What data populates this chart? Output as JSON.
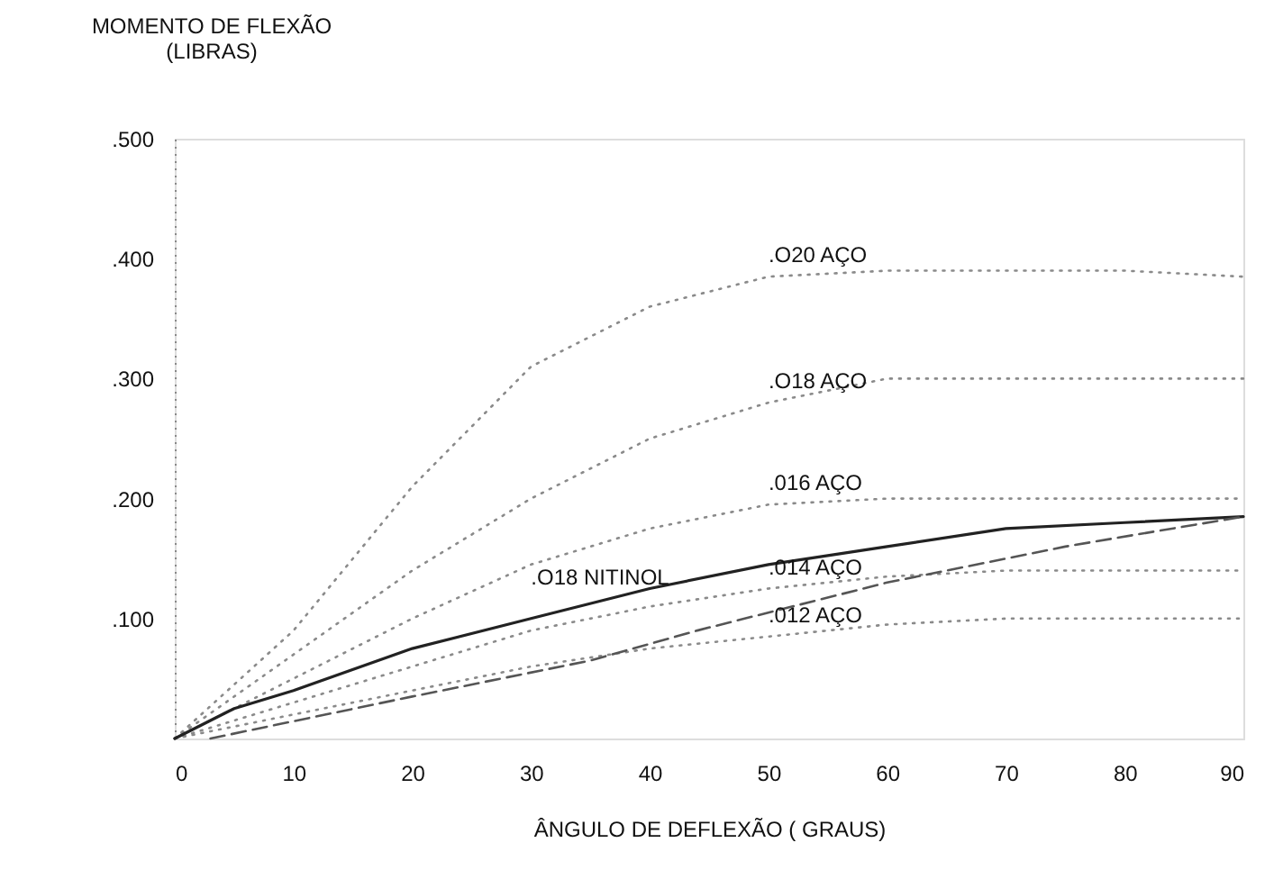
{
  "chart_data": {
    "type": "line",
    "xlabel": "ÂNGULO DE DEFLEXÃO ( GRAUS)",
    "ylabel": "MOMENTO DE FLEXÃO\n(LIBRAS)",
    "xlim": [
      0,
      90
    ],
    "ylim": [
      0,
      0.5
    ],
    "xticks": [
      0,
      10,
      20,
      30,
      40,
      50,
      60,
      70,
      80,
      90
    ],
    "yticks": [
      {
        "value": 0.1,
        "label": ".100"
      },
      {
        "value": 0.2,
        "label": ".200"
      },
      {
        "value": 0.3,
        "label": ".300"
      },
      {
        "value": 0.4,
        "label": ".400"
      },
      {
        "value": 0.5,
        "label": ".500"
      }
    ],
    "grid": false,
    "marker": "none",
    "series": [
      {
        "name": ".O20 AÇO",
        "color": "#8a8a8a",
        "line_style": "dotted",
        "x": [
          0,
          10,
          20,
          30,
          40,
          50,
          60,
          70,
          80,
          90
        ],
        "values": [
          0,
          0.09,
          0.21,
          0.31,
          0.36,
          0.385,
          0.39,
          0.39,
          0.39,
          0.385
        ]
      },
      {
        "name": ".O18 AÇO",
        "color": "#8a8a8a",
        "line_style": "dotted",
        "x": [
          0,
          10,
          20,
          30,
          40,
          50,
          60,
          70,
          80,
          90
        ],
        "values": [
          0,
          0.07,
          0.14,
          0.2,
          0.25,
          0.28,
          0.3,
          0.3,
          0.3,
          0.3
        ]
      },
      {
        "name": ".016 AÇO",
        "color": "#8a8a8a",
        "line_style": "dotted",
        "x": [
          0,
          10,
          20,
          30,
          40,
          50,
          60,
          70,
          80,
          90
        ],
        "values": [
          0,
          0.05,
          0.1,
          0.145,
          0.175,
          0.195,
          0.2,
          0.2,
          0.2,
          0.2
        ]
      },
      {
        "name": ".014 AÇO",
        "color": "#8a8a8a",
        "line_style": "dotted",
        "x": [
          0,
          10,
          20,
          30,
          40,
          50,
          60,
          70,
          80,
          90
        ],
        "values": [
          0,
          0.03,
          0.06,
          0.09,
          0.11,
          0.125,
          0.135,
          0.14,
          0.14,
          0.14
        ]
      },
      {
        "name": ".012 AÇO",
        "color": "#8a8a8a",
        "line_style": "dotted",
        "x": [
          0,
          10,
          20,
          30,
          40,
          50,
          60,
          70,
          80,
          90
        ],
        "values": [
          0,
          0.02,
          0.04,
          0.06,
          0.075,
          0.085,
          0.095,
          0.1,
          0.1,
          0.1
        ]
      },
      {
        "name": ".O18 NITINOL",
        "color": "#222222",
        "line_style": "solid",
        "x": [
          0,
          5,
          10,
          20,
          30,
          40,
          50,
          60,
          70,
          80,
          90
        ],
        "values": [
          0,
          0.025,
          0.04,
          0.075,
          0.1,
          0.125,
          0.145,
          0.16,
          0.175,
          0.18,
          0.185
        ]
      },
      {
        "color": "#555555",
        "line_style": "dashed",
        "x": [
          3,
          20,
          35,
          44,
          60,
          75,
          90
        ],
        "values": [
          0,
          0.035,
          0.065,
          0.09,
          0.13,
          0.16,
          0.185
        ]
      }
    ]
  }
}
